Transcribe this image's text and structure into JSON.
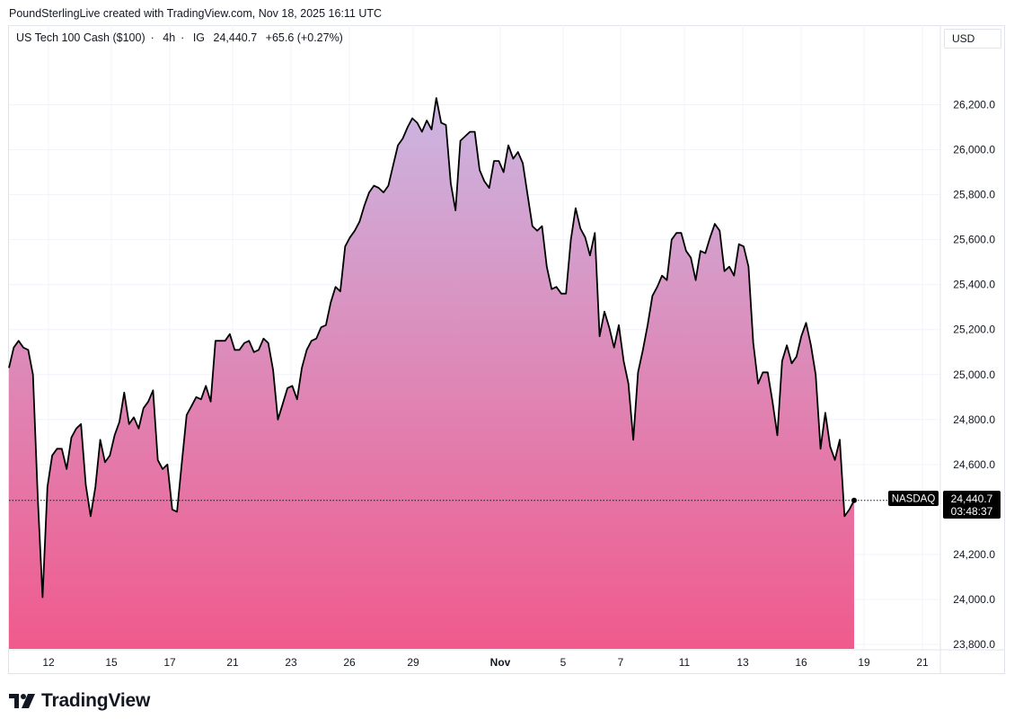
{
  "attribution": "PoundSterlingLive created with TradingView.com, Nov 18, 2025 16:11 UTC",
  "legend": {
    "symbol": "US Tech 100 Cash ($100)",
    "interval": "4h",
    "source": "IG",
    "price": "24,440.7",
    "change": "+65.6 (+0.27%)"
  },
  "currency": "USD",
  "price_label": {
    "name": "NASDAQ",
    "value": "24,440.7",
    "countdown": "03:48:37"
  },
  "footer": {
    "brand": "TradingView",
    "logo_icon": "tradingview-logo-icon"
  },
  "colors": {
    "line": "#000000",
    "fill_top": "#cbb6e2",
    "fill_bottom": "#f05a8c",
    "grid": "#f0f3fa"
  },
  "chart_data": {
    "type": "area",
    "x_tick_labels": [
      "12",
      "15",
      "17",
      "21",
      "23",
      "26",
      "29",
      "Nov",
      "5",
      "7",
      "11",
      "13",
      "16",
      "19",
      "21"
    ],
    "y_tick_labels": [
      "26,200.0",
      "26,000.0",
      "25,800.0",
      "25,600.0",
      "25,400.0",
      "25,200.0",
      "25,000.0",
      "24,800.0",
      "24,600.0",
      "24,200.0",
      "24,000.0",
      "23,800.0"
    ],
    "ylim": [
      23780,
      26450
    ],
    "grid": true,
    "series": [
      {
        "values": [
          25030,
          25120,
          25150,
          25120,
          25110,
          25000,
          24450,
          24010,
          24500,
          24640,
          24670,
          24670,
          24580,
          24720,
          24760,
          24780,
          24510,
          24370,
          24500,
          24710,
          24610,
          24640,
          24730,
          24790,
          24920,
          24780,
          24810,
          24760,
          24850,
          24880,
          24930,
          24620,
          24580,
          24600,
          24400,
          24390,
          24610,
          24820,
          24860,
          24900,
          24890,
          24950,
          24880,
          25150,
          25150,
          25150,
          25180,
          25110,
          25110,
          25140,
          25150,
          25100,
          25110,
          25160,
          25140,
          25020,
          24800,
          24870,
          24940,
          24950,
          24890,
          25030,
          25110,
          25150,
          25160,
          25210,
          25220,
          25320,
          25390,
          25370,
          25570,
          25610,
          25640,
          25680,
          25750,
          25810,
          25840,
          25830,
          25810,
          25840,
          25930,
          26020,
          26050,
          26100,
          26140,
          26120,
          26080,
          26130,
          26090,
          26230,
          26120,
          26110,
          25850,
          25730,
          26040,
          26060,
          26080,
          26080,
          25910,
          25860,
          25830,
          25950,
          25950,
          25900,
          26020,
          25960,
          25990,
          25940,
          25800,
          25660,
          25640,
          25660,
          25480,
          25380,
          25390,
          25360,
          25360,
          25600,
          25740,
          25650,
          25610,
          25530,
          25630,
          25170,
          25280,
          25210,
          25120,
          25220,
          25060,
          24960,
          24710,
          25010,
          25110,
          25220,
          25350,
          25390,
          25440,
          25420,
          25600,
          25630,
          25630,
          25550,
          25520,
          25420,
          25550,
          25540,
          25610,
          25670,
          25640,
          25460,
          25480,
          25440,
          25580,
          25570,
          25480,
          25140,
          24960,
          25010,
          25010,
          24880,
          24730,
          25060,
          25130,
          25050,
          25080,
          25170,
          25230,
          25130,
          25000,
          24670,
          24830,
          24680,
          24620,
          24710,
          24370,
          24400,
          24440.7
        ]
      }
    ]
  }
}
